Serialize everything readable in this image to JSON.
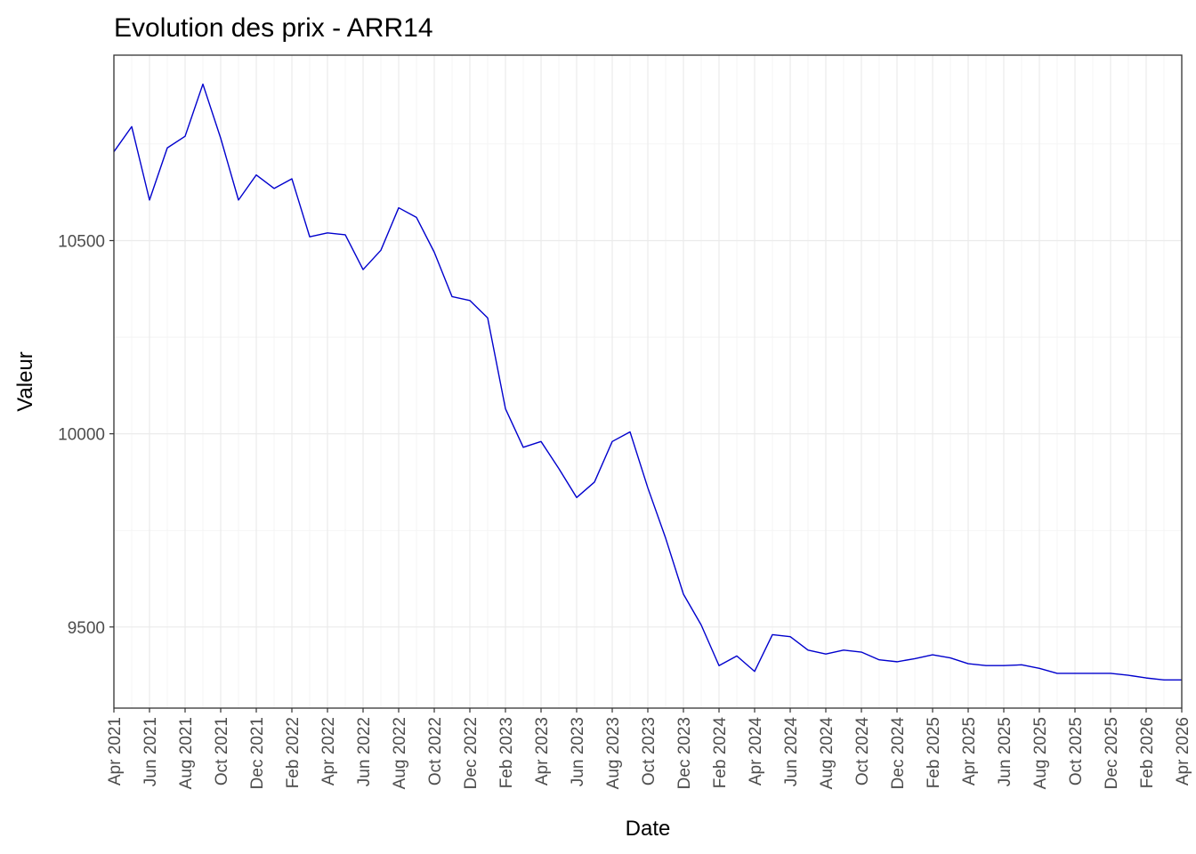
{
  "chart_data": {
    "type": "line",
    "title": "Evolution des prix - ARR14",
    "xlabel": "Date",
    "ylabel": "Valeur",
    "x_range": [
      "2021-04",
      "2026-04"
    ],
    "ylim": [
      9290,
      10980
    ],
    "y_ticks": [
      9500,
      10000,
      10500
    ],
    "x_tick_labels": [
      "Apr 2021",
      "Jun 2021",
      "Aug 2021",
      "Oct 2021",
      "Dec 2021",
      "Feb 2022",
      "Apr 2022",
      "Jun 2022",
      "Aug 2022",
      "Oct 2022",
      "Dec 2022",
      "Feb 2023",
      "Apr 2023",
      "Jun 2023",
      "Aug 2023",
      "Oct 2023",
      "Dec 2023",
      "Feb 2024",
      "Apr 2024",
      "Jun 2024",
      "Aug 2024",
      "Oct 2024",
      "Dec 2024",
      "Feb 2025",
      "Apr 2025",
      "Jun 2025",
      "Aug 2025",
      "Oct 2025",
      "Dec 2025",
      "Feb 2026",
      "Apr 2026"
    ],
    "grid": true,
    "series": [
      {
        "color": "#0000cd",
        "x": [
          "2021-04",
          "2021-05",
          "2021-06",
          "2021-07",
          "2021-08",
          "2021-09",
          "2021-10",
          "2021-11",
          "2021-12",
          "2022-01",
          "2022-02",
          "2022-03",
          "2022-04",
          "2022-05",
          "2022-06",
          "2022-07",
          "2022-08",
          "2022-09",
          "2022-10",
          "2022-11",
          "2022-12",
          "2023-01",
          "2023-02",
          "2023-03",
          "2023-04",
          "2023-05",
          "2023-06",
          "2023-07",
          "2023-08",
          "2023-09",
          "2023-10",
          "2023-11",
          "2023-12",
          "2024-01",
          "2024-02",
          "2024-03",
          "2024-04",
          "2024-05",
          "2024-06",
          "2024-07",
          "2024-08",
          "2024-09",
          "2024-10",
          "2024-11",
          "2024-12",
          "2025-01",
          "2025-02",
          "2025-03",
          "2025-04",
          "2025-05",
          "2025-06",
          "2025-07",
          "2025-08",
          "2025-09",
          "2025-10",
          "2025-11",
          "2025-12",
          "2026-01",
          "2026-02",
          "2026-03",
          "2026-04"
        ],
        "values": [
          10730,
          10795,
          10605,
          10740,
          10770,
          10905,
          10765,
          10605,
          10670,
          10635,
          10660,
          10510,
          10520,
          10515,
          10425,
          10475,
          10585,
          10560,
          10470,
          10355,
          10345,
          10300,
          10065,
          9965,
          9980,
          9910,
          9835,
          9875,
          9980,
          10005,
          9860,
          9730,
          9585,
          9505,
          9400,
          9425,
          9385,
          9480,
          9475,
          9440,
          9430,
          9440,
          9435,
          9415,
          9410,
          9418,
          9428,
          9420,
          9405,
          9400,
          9400,
          9402,
          9393,
          9380,
          9380,
          9380,
          9380,
          9375,
          9368,
          9363,
          9363
        ]
      }
    ]
  }
}
